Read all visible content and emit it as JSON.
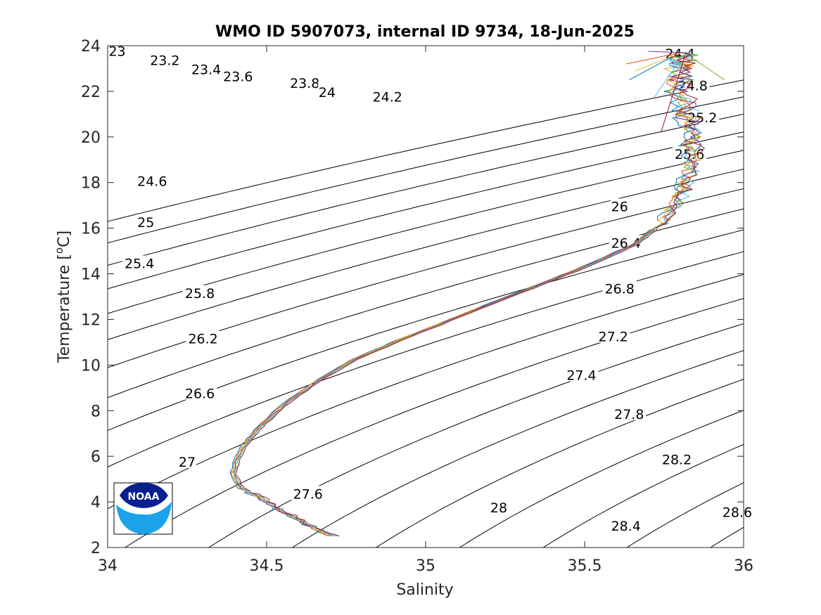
{
  "chart_data": {
    "type": "line",
    "title": "WMO ID 5907073, internal ID 9734, 18-Jun-2025",
    "xlabel": "Salinity",
    "ylabel_main": "Temperature [",
    "ylabel_sup": "o",
    "ylabel_end": "C]",
    "xlim": [
      34,
      36
    ],
    "ylim": [
      2,
      24
    ],
    "x_ticks": [
      34,
      34.5,
      35,
      35.5,
      36
    ],
    "x_tick_labels": [
      "34",
      "34.5",
      "35",
      "35.5",
      "36"
    ],
    "y_ticks": [
      2,
      4,
      6,
      8,
      10,
      12,
      14,
      16,
      18,
      20,
      22,
      24
    ],
    "y_tick_labels": [
      "2",
      "4",
      "6",
      "8",
      "10",
      "12",
      "14",
      "16",
      "18",
      "20",
      "22",
      "24"
    ],
    "grid": false,
    "density_contours": {
      "levels": [
        23,
        23.2,
        23.4,
        23.6,
        23.8,
        24,
        24.2,
        24.4,
        24.6,
        24.8,
        25,
        25.2,
        25.4,
        25.6,
        25.8,
        26,
        26.2,
        26.4,
        26.6,
        26.8,
        27,
        27.2,
        27.4,
        27.6,
        27.8,
        28,
        28.2,
        28.4,
        28.6
      ],
      "labels": [
        {
          "text": "23",
          "s": 34.03,
          "t": 23.7
        },
        {
          "text": "23.2",
          "s": 34.18,
          "t": 23.3
        },
        {
          "text": "23.4",
          "s": 34.31,
          "t": 22.9
        },
        {
          "text": "23.6",
          "s": 34.41,
          "t": 22.6
        },
        {
          "text": "23.8",
          "s": 34.62,
          "t": 22.3
        },
        {
          "text": "24",
          "s": 34.69,
          "t": 21.9
        },
        {
          "text": "24.2",
          "s": 34.88,
          "t": 21.7
        },
        {
          "text": "24.4",
          "s": 35.8,
          "t": 23.6
        },
        {
          "text": "24.6",
          "s": 34.14,
          "t": 18.0
        },
        {
          "text": "24.8",
          "s": 35.84,
          "t": 22.2
        },
        {
          "text": "25",
          "s": 34.12,
          "t": 16.2
        },
        {
          "text": "25.2",
          "s": 35.87,
          "t": 20.8
        },
        {
          "text": "25.4",
          "s": 34.1,
          "t": 14.4
        },
        {
          "text": "25.6",
          "s": 35.83,
          "t": 19.2
        },
        {
          "text": "25.8",
          "s": 34.29,
          "t": 13.1
        },
        {
          "text": "26",
          "s": 35.61,
          "t": 16.9
        },
        {
          "text": "26.2",
          "s": 34.3,
          "t": 11.1
        },
        {
          "text": "26.4",
          "s": 35.63,
          "t": 15.3
        },
        {
          "text": "26.6",
          "s": 34.29,
          "t": 8.7
        },
        {
          "text": "26.8",
          "s": 35.61,
          "t": 13.3
        },
        {
          "text": "27",
          "s": 34.25,
          "t": 5.7
        },
        {
          "text": "27.2",
          "s": 35.59,
          "t": 11.2
        },
        {
          "text": "27.4",
          "s": 35.49,
          "t": 9.5
        },
        {
          "text": "27.6",
          "s": 34.63,
          "t": 4.3
        },
        {
          "text": "27.8",
          "s": 35.64,
          "t": 7.8
        },
        {
          "text": "28",
          "s": 35.23,
          "t": 3.7
        },
        {
          "text": "28.2",
          "s": 35.79,
          "t": 5.8
        },
        {
          "text": "28.4",
          "s": 35.63,
          "t": 2.9
        },
        {
          "text": "28.6",
          "s": 35.98,
          "t": 3.5
        }
      ]
    },
    "profile_colors": [
      "#0072BD",
      "#D95319",
      "#EDB120",
      "#7E2F8E",
      "#77AC30",
      "#4DBEEE",
      "#A2142F"
    ],
    "profile_core": [
      {
        "s": 34.71,
        "t": 2.5
      },
      {
        "s": 34.63,
        "t": 3.0
      },
      {
        "s": 34.55,
        "t": 3.6
      },
      {
        "s": 34.48,
        "t": 4.2
      },
      {
        "s": 34.42,
        "t": 4.6
      },
      {
        "s": 34.395,
        "t": 5.2
      },
      {
        "s": 34.405,
        "t": 5.8
      },
      {
        "s": 34.43,
        "t": 6.5
      },
      {
        "s": 34.48,
        "t": 7.3
      },
      {
        "s": 34.55,
        "t": 8.2
      },
      {
        "s": 34.65,
        "t": 9.2
      },
      {
        "s": 34.77,
        "t": 10.2
      },
      {
        "s": 34.92,
        "t": 11.1
      },
      {
        "s": 35.1,
        "t": 12.1
      },
      {
        "s": 35.3,
        "t": 13.2
      },
      {
        "s": 35.5,
        "t": 14.3
      },
      {
        "s": 35.66,
        "t": 15.3
      },
      {
        "s": 35.74,
        "t": 16.2
      },
      {
        "s": 35.79,
        "t": 17.1
      },
      {
        "s": 35.82,
        "t": 18.0
      },
      {
        "s": 35.84,
        "t": 19.0
      },
      {
        "s": 35.84,
        "t": 20.0
      },
      {
        "s": 35.82,
        "t": 21.0
      },
      {
        "s": 35.8,
        "t": 22.0
      },
      {
        "s": 35.8,
        "t": 23.0
      },
      {
        "s": 35.81,
        "t": 23.7
      }
    ],
    "surface_tails": [
      {
        "s": 35.64,
        "t": 22.5
      },
      {
        "s": 35.63,
        "t": 23.2
      },
      {
        "s": 35.66,
        "t": 22.9
      },
      {
        "s": 35.7,
        "t": 23.75
      },
      {
        "s": 35.94,
        "t": 22.5
      },
      {
        "s": 35.72,
        "t": 21.75
      },
      {
        "s": 35.74,
        "t": 20.2
      }
    ]
  },
  "logo": {
    "text": "NOAA",
    "top_color": "#0a1f8f",
    "bottom_color": "#1aa3e8"
  }
}
